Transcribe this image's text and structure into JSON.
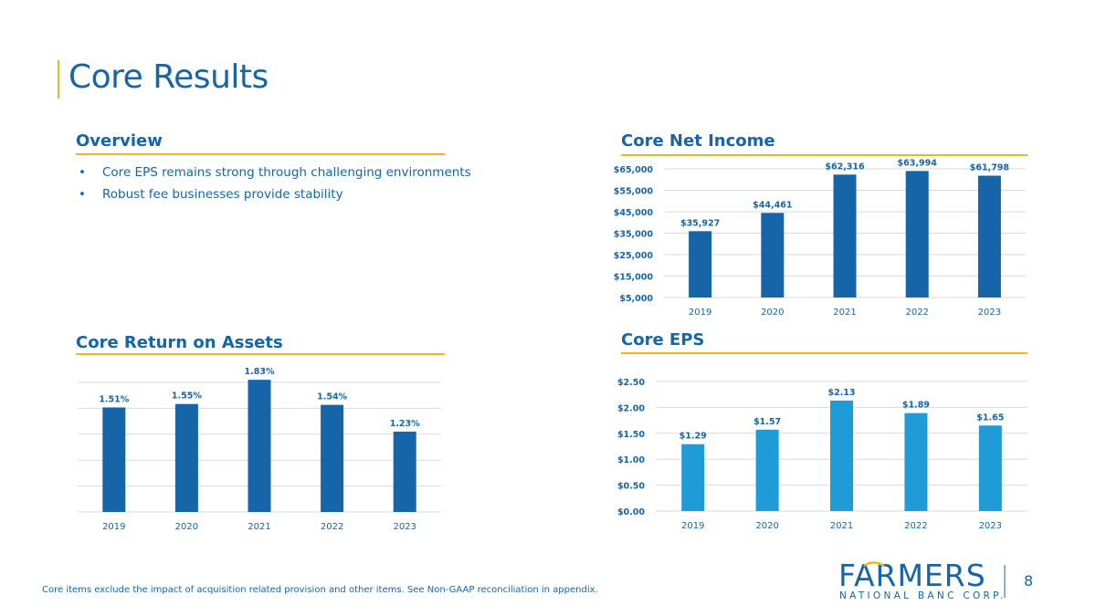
{
  "page": {
    "title": "Core Results",
    "page_number": "8",
    "footnote": "Core items exclude the impact of acquisition related provision and other items. See Non-GAAP reconciliation in appendix."
  },
  "overview": {
    "heading": "Overview",
    "bullet_symbol": "•",
    "bullets": [
      "Core EPS remains strong through challenging environments",
      "Robust fee businesses provide stability"
    ]
  },
  "logo": {
    "name": "FARMERS",
    "sub": "NATIONAL BANC CORP."
  },
  "colors": {
    "dark_blue": "#1565a8",
    "light_blue": "#1f9bd7",
    "gold": "#f0b429",
    "grid": "#d9d9d9"
  },
  "chart_data": [
    {
      "id": "net-income",
      "type": "bar",
      "title": "Core Net Income",
      "categories": [
        "2019",
        "2020",
        "2021",
        "2022",
        "2023"
      ],
      "values": [
        35927,
        44461,
        62316,
        63994,
        61798
      ],
      "data_labels": [
        "$35,927",
        "$44,461",
        "$62,316",
        "$63,994",
        "$61,798"
      ],
      "ylim": [
        5000,
        65000
      ],
      "ticks": [
        5000,
        15000,
        25000,
        35000,
        45000,
        55000,
        65000
      ],
      "tick_labels": [
        "$5,000",
        "$15,000",
        "$25,000",
        "$35,000",
        "$45,000",
        "$55,000",
        "$65,000"
      ],
      "color": "#1565a8",
      "grid": true
    },
    {
      "id": "roa",
      "type": "bar",
      "title": "Core Return on Assets",
      "categories": [
        "2019",
        "2020",
        "2021",
        "2022",
        "2023"
      ],
      "values": [
        1.51,
        1.55,
        1.83,
        1.54,
        1.23
      ],
      "data_labels": [
        "1.51%",
        "1.55%",
        "1.83%",
        "1.54%",
        "1.23%"
      ],
      "ylim": [
        0.3,
        1.8
      ],
      "ticks": [
        0.3,
        0.6,
        0.9,
        1.2,
        1.5,
        1.8
      ],
      "tick_labels": [],
      "color": "#1565a8",
      "grid": true
    },
    {
      "id": "eps",
      "type": "bar",
      "title": "Core EPS",
      "categories": [
        "2019",
        "2020",
        "2021",
        "2022",
        "2023"
      ],
      "values": [
        1.29,
        1.57,
        2.13,
        1.89,
        1.65
      ],
      "data_labels": [
        "$1.29",
        "$1.57",
        "$2.13",
        "$1.89",
        "$1.65"
      ],
      "ylim": [
        0,
        2.5
      ],
      "ticks": [
        0,
        0.5,
        1.0,
        1.5,
        2.0,
        2.5
      ],
      "tick_labels": [
        "$0.00",
        "$0.50",
        "$1.00",
        "$1.50",
        "$2.00",
        "$2.50"
      ],
      "color": "#1f9bd7",
      "grid": true
    }
  ]
}
